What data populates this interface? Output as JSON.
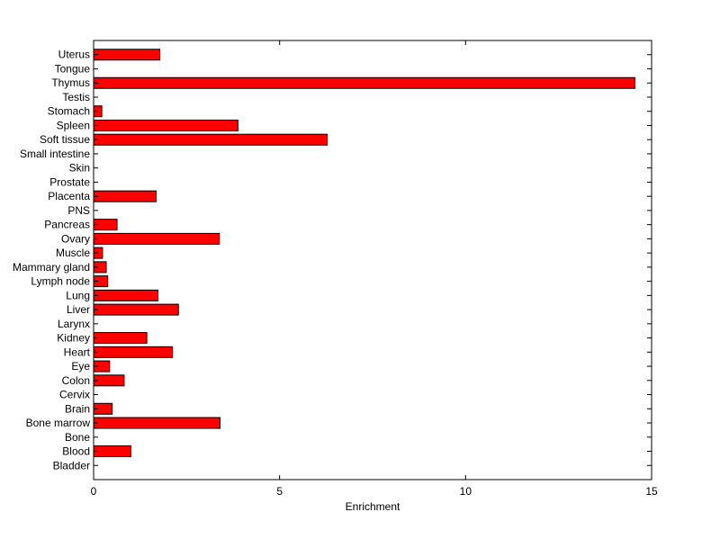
{
  "chart_data": {
    "type": "bar",
    "orientation": "horizontal",
    "xlabel": "Enrichment",
    "xlim": [
      0,
      15
    ],
    "xticks": [
      0,
      5,
      10,
      15
    ],
    "bar_color": "#ff0000",
    "edge_color": "#000000",
    "grid": false,
    "categories": [
      "Bladder",
      "Blood",
      "Bone",
      "Bone marrow",
      "Brain",
      "Cervix",
      "Colon",
      "Eye",
      "Heart",
      "Kidney",
      "Larynx",
      "Liver",
      "Lung",
      "Lymph node",
      "Mammary gland",
      "Muscle",
      "Ovary",
      "Pancreas",
      "PNS",
      "Placenta",
      "Prostate",
      "Skin",
      "Small intestine",
      "Soft tissue",
      "Spleen",
      "Stomach",
      "Testis",
      "Thymus",
      "Tongue",
      "Uterus"
    ],
    "values": [
      0,
      1.0,
      0,
      3.4,
      0.5,
      0,
      0.82,
      0.43,
      2.12,
      1.43,
      0,
      2.28,
      1.73,
      0.38,
      0.34,
      0.24,
      3.38,
      0.63,
      0,
      1.68,
      0,
      0,
      0,
      6.28,
      3.88,
      0.22,
      0,
      14.55,
      0,
      1.78
    ]
  }
}
